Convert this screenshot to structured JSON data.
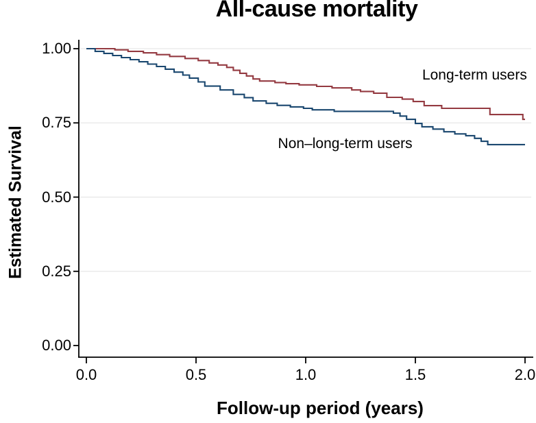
{
  "chart_data": {
    "type": "line",
    "subtype": "kaplan-meier-step-survival",
    "title": "All-cause mortality",
    "xlabel": "Follow-up period (years)",
    "ylabel": "Estimated Survival",
    "xlim": [
      0.0,
      2.0
    ],
    "ylim": [
      0.0,
      1.0
    ],
    "grid": "horizontal gridlines at y ticks, light gray, on white background",
    "legend_position": "inline text annotations next to curves",
    "xticks": {
      "values": [
        0.0,
        0.5,
        1.0,
        1.5,
        2.0
      ],
      "labels": [
        "0.0",
        "0.5",
        "1.0",
        "1.5",
        "2.0"
      ]
    },
    "yticks": {
      "values": [
        0.0,
        0.25,
        0.5,
        0.75,
        1.0
      ],
      "labels": [
        "0.00",
        "0.25",
        "0.50",
        "0.75",
        "1.00"
      ]
    },
    "series": [
      {
        "name": "Long-term users",
        "color": "#943a41",
        "label_anchor": {
          "t": 1.77,
          "s": 0.91
        },
        "points": [
          [
            0.0,
            1.0
          ],
          [
            0.13,
            0.996
          ],
          [
            0.19,
            0.991
          ],
          [
            0.26,
            0.986
          ],
          [
            0.32,
            0.98
          ],
          [
            0.38,
            0.974
          ],
          [
            0.45,
            0.967
          ],
          [
            0.51,
            0.96
          ],
          [
            0.56,
            0.952
          ],
          [
            0.6,
            0.945
          ],
          [
            0.64,
            0.937
          ],
          [
            0.67,
            0.927
          ],
          [
            0.7,
            0.917
          ],
          [
            0.73,
            0.908
          ],
          [
            0.76,
            0.898
          ],
          [
            0.79,
            0.891
          ],
          [
            0.86,
            0.886
          ],
          [
            0.91,
            0.882
          ],
          [
            0.97,
            0.878
          ],
          [
            1.05,
            0.873
          ],
          [
            1.12,
            0.868
          ],
          [
            1.21,
            0.861
          ],
          [
            1.25,
            0.856
          ],
          [
            1.31,
            0.85
          ],
          [
            1.37,
            0.836
          ],
          [
            1.44,
            0.83
          ],
          [
            1.49,
            0.822
          ],
          [
            1.54,
            0.808
          ],
          [
            1.62,
            0.799
          ],
          [
            1.84,
            0.778
          ],
          [
            1.99,
            0.762
          ],
          [
            2.0,
            0.762
          ]
        ]
      },
      {
        "name": "Non–long-term users",
        "color": "#1a476f",
        "label_anchor": {
          "t": 1.18,
          "s": 0.679
        },
        "points": [
          [
            0.0,
            1.0
          ],
          [
            0.04,
            0.991
          ],
          [
            0.08,
            0.984
          ],
          [
            0.12,
            0.977
          ],
          [
            0.16,
            0.97
          ],
          [
            0.2,
            0.963
          ],
          [
            0.24,
            0.956
          ],
          [
            0.28,
            0.948
          ],
          [
            0.32,
            0.94
          ],
          [
            0.36,
            0.931
          ],
          [
            0.4,
            0.921
          ],
          [
            0.44,
            0.911
          ],
          [
            0.47,
            0.901
          ],
          [
            0.51,
            0.888
          ],
          [
            0.54,
            0.874
          ],
          [
            0.61,
            0.861
          ],
          [
            0.67,
            0.846
          ],
          [
            0.72,
            0.835
          ],
          [
            0.76,
            0.824
          ],
          [
            0.82,
            0.816
          ],
          [
            0.87,
            0.809
          ],
          [
            0.93,
            0.804
          ],
          [
            0.99,
            0.799
          ],
          [
            1.03,
            0.794
          ],
          [
            1.13,
            0.789
          ],
          [
            1.4,
            0.783
          ],
          [
            1.43,
            0.773
          ],
          [
            1.46,
            0.762
          ],
          [
            1.5,
            0.748
          ],
          [
            1.53,
            0.737
          ],
          [
            1.58,
            0.729
          ],
          [
            1.63,
            0.72
          ],
          [
            1.68,
            0.713
          ],
          [
            1.73,
            0.707
          ],
          [
            1.77,
            0.698
          ],
          [
            1.8,
            0.688
          ],
          [
            1.83,
            0.677
          ],
          [
            2.0,
            0.677
          ]
        ]
      }
    ],
    "colors": {
      "background": "#ffffff",
      "axis": "#000000",
      "gridline": "#e6e6e6",
      "text": "#000000"
    }
  }
}
